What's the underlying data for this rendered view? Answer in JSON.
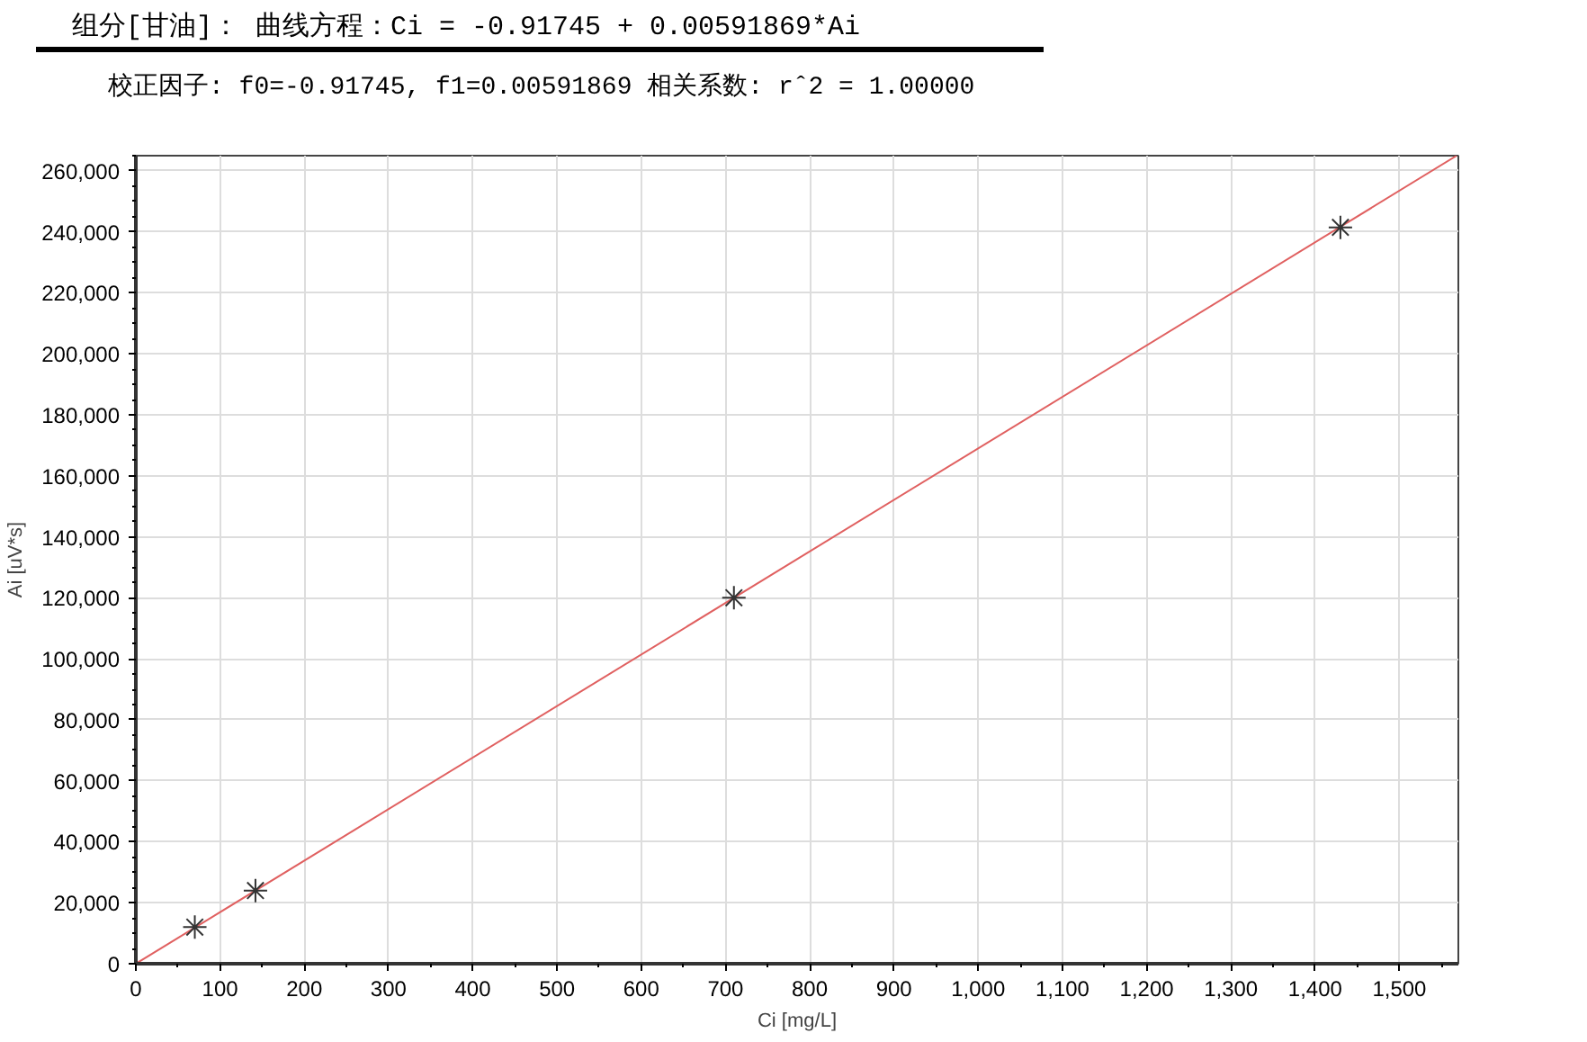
{
  "chart_data": {
    "type": "scatter",
    "title": "组分[甘油]： 曲线方程：Ci = -0.91745 + 0.00591869*Ai",
    "subtitle": "校正因子: f0=-0.91745, f1=0.00591869  相关系数: rˆ2 = 1.00000",
    "xlabel": "Ci [mg/L]",
    "ylabel": "Ai [uV*s]",
    "series": [
      {
        "type": "line",
        "color": "#e06060",
        "x": [
          0,
          1568
        ],
        "values": [
          0,
          265000
        ],
        "marker": "none"
      },
      {
        "color": "#333333",
        "x": [
          70,
          142,
          710,
          1430
        ],
        "values": [
          12000,
          24000,
          120000,
          241500
        ],
        "marker": "cross"
      }
    ],
    "xlim": [
      0,
      1570
    ],
    "ylim": [
      0,
      265000
    ],
    "xticks": [
      {
        "value": 0,
        "label": "0"
      },
      {
        "value": 100,
        "label": "100"
      },
      {
        "value": 200,
        "label": "200"
      },
      {
        "value": 300,
        "label": "300"
      },
      {
        "value": 400,
        "label": "400"
      },
      {
        "value": 500,
        "label": "500"
      },
      {
        "value": 600,
        "label": "600"
      },
      {
        "value": 700,
        "label": "700"
      },
      {
        "value": 800,
        "label": "800"
      },
      {
        "value": 900,
        "label": "900"
      },
      {
        "value": 1000,
        "label": "1,000"
      },
      {
        "value": 1100,
        "label": "1,100"
      },
      {
        "value": 1200,
        "label": "1,200"
      },
      {
        "value": 1300,
        "label": "1,300"
      },
      {
        "value": 1400,
        "label": "1,400"
      },
      {
        "value": 1500,
        "label": "1,500"
      }
    ],
    "yticks": [
      {
        "value": 0,
        "label": "0"
      },
      {
        "value": 20000,
        "label": "20,000"
      },
      {
        "value": 40000,
        "label": "40,000"
      },
      {
        "value": 60000,
        "label": "60,000"
      },
      {
        "value": 80000,
        "label": "80,000"
      },
      {
        "value": 100000,
        "label": "100,000"
      },
      {
        "value": 120000,
        "label": "120,000"
      },
      {
        "value": 140000,
        "label": "140,000"
      },
      {
        "value": 160000,
        "label": "160,000"
      },
      {
        "value": 180000,
        "label": "180,000"
      },
      {
        "value": 200000,
        "label": "200,000"
      },
      {
        "value": 220000,
        "label": "220,000"
      },
      {
        "value": 240000,
        "label": "240,000"
      },
      {
        "value": 260000,
        "label": "260,000"
      }
    ],
    "grid": true
  }
}
